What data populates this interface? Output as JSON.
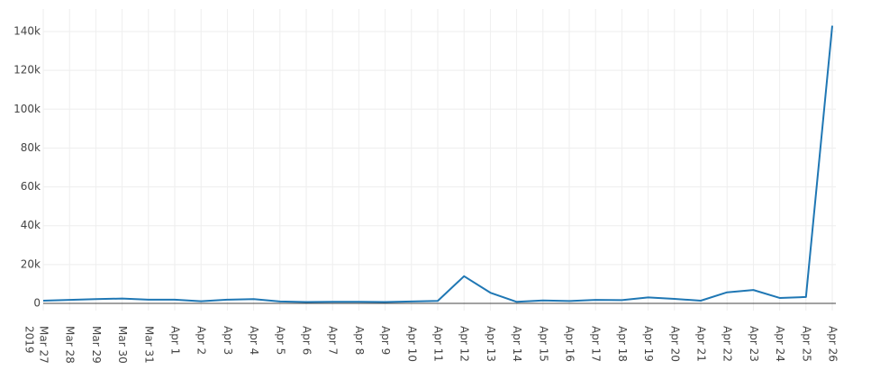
{
  "chart_data": {
    "type": "line",
    "categories": [
      "Mar 27",
      "Mar 28",
      "Mar 29",
      "Mar 30",
      "Mar 31",
      "Apr 1",
      "Apr 2",
      "Apr 3",
      "Apr 4",
      "Apr 5",
      "Apr 6",
      "Apr 7",
      "Apr 8",
      "Apr 9",
      "Apr 10",
      "Apr 11",
      "Apr 12",
      "Apr 13",
      "Apr 14",
      "Apr 15",
      "Apr 16",
      "Apr 17",
      "Apr 18",
      "Apr 19",
      "Apr 20",
      "Apr 21",
      "Apr 22",
      "Apr 23",
      "Apr 24",
      "Apr 25",
      "Apr 26"
    ],
    "year_label": "2019",
    "values": [
      1400,
      1800,
      2200,
      2500,
      1900,
      1900,
      1100,
      1900,
      2200,
      1000,
      700,
      800,
      800,
      700,
      1000,
      1300,
      14000,
      5500,
      800,
      1500,
      1200,
      1800,
      1700,
      3100,
      2300,
      1400,
      5700,
      6900,
      2800,
      3300,
      143000
    ],
    "color": "#1f77b4",
    "ylim": [
      -3700,
      151600
    ],
    "yticks": [
      0,
      {
        "value": 20000,
        "label": "20k"
      },
      {
        "value": 40000,
        "label": "40k"
      },
      {
        "value": 60000,
        "label": "60k"
      },
      {
        "value": 80000,
        "label": "80k"
      },
      {
        "value": 100000,
        "label": "100k"
      },
      {
        "value": 120000,
        "label": "120k"
      },
      {
        "value": 140000,
        "label": "140k"
      }
    ],
    "grid": true
  }
}
